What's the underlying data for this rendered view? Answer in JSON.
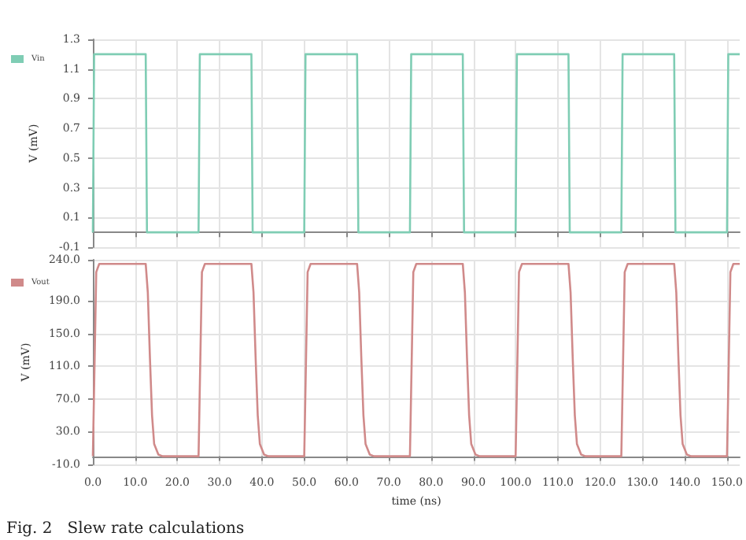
{
  "chart_data": [
    {
      "type": "line",
      "ylabel": "V (mV)",
      "legend": "top left",
      "grid": true,
      "tick_labels": "y",
      "marker": "none",
      "xlim": [
        0,
        153
      ],
      "xticks": [
        {
          "value": 0,
          "label": null
        },
        {
          "value": 10,
          "label": null
        },
        {
          "value": 20,
          "label": null
        },
        {
          "value": 30,
          "label": null
        },
        {
          "value": 40,
          "label": null
        },
        {
          "value": 50,
          "label": null
        },
        {
          "value": 60,
          "label": null
        },
        {
          "value": 70,
          "label": null
        },
        {
          "value": 80,
          "label": null
        },
        {
          "value": 90,
          "label": null
        },
        {
          "value": 100,
          "label": null
        },
        {
          "value": 110,
          "label": null
        },
        {
          "value": 120,
          "label": null
        },
        {
          "value": 130,
          "label": null
        },
        {
          "value": 140,
          "label": null
        },
        {
          "value": 150,
          "label": null
        }
      ],
      "ylim": [
        -0.1,
        1.3
      ],
      "yticks": [
        -0.1,
        0.1,
        0.3,
        0.5,
        0.7,
        0.9,
        1.1,
        1.3
      ],
      "series": [
        {
          "name": "Vin",
          "color": "#7fcdb4",
          "x": [
            0,
            0.3,
            12.5,
            12.8,
            25,
            25.3,
            37.5,
            37.8,
            50,
            50.3,
            62.5,
            62.8,
            75,
            75.3,
            87.5,
            87.8,
            100,
            100.3,
            112.5,
            112.8,
            125,
            125.3,
            137.5,
            137.8,
            150,
            150.3,
            153
          ],
          "values": [
            0,
            1.2,
            1.2,
            0,
            0,
            1.2,
            1.2,
            0,
            0,
            1.2,
            1.2,
            0,
            0,
            1.2,
            1.2,
            0,
            0,
            1.2,
            1.2,
            0,
            0,
            1.2,
            1.2,
            0,
            0,
            1.2,
            1.2
          ]
        }
      ]
    },
    {
      "type": "line",
      "xlabel": "time (ns)",
      "ylabel": "V (mV)",
      "legend": "top left",
      "grid": true,
      "marker": "none",
      "annotations": [
        "Fig. 2   Slew rate calculations"
      ],
      "xlim": [
        0,
        153
      ],
      "xticks": [
        {
          "value": 0,
          "label": "0.0"
        },
        {
          "value": 10,
          "label": "10.0"
        },
        {
          "value": 20,
          "label": "20.0"
        },
        {
          "value": 30,
          "label": "30.0"
        },
        {
          "value": 40,
          "label": "40.0"
        },
        {
          "value": 50,
          "label": "50.0"
        },
        {
          "value": 60,
          "label": "60.0"
        },
        {
          "value": 70,
          "label": "70.0"
        },
        {
          "value": 80,
          "label": "80.0"
        },
        {
          "value": 90,
          "label": "90.0"
        },
        {
          "value": 100,
          "label": "100.0"
        },
        {
          "value": 110,
          "label": "110.0"
        },
        {
          "value": 120,
          "label": "120.0"
        },
        {
          "value": 130,
          "label": "130.0"
        },
        {
          "value": 140,
          "label": "140.0"
        },
        {
          "value": 150,
          "label": "150.0"
        }
      ],
      "ylim": [
        -10,
        240
      ],
      "yticks": [
        {
          "value": -10,
          "label": "-10.0"
        },
        {
          "value": 30,
          "label": "30.0"
        },
        {
          "value": 70,
          "label": "70.0"
        },
        {
          "value": 110,
          "label": "110.0"
        },
        {
          "value": 150,
          "label": "150.0"
        },
        {
          "value": 190,
          "label": "190.0"
        },
        {
          "value": 240,
          "label": "240.0"
        }
      ],
      "series": [
        {
          "name": "Vout",
          "color": "#d08a8a",
          "x": [
            0,
            0.8,
            1.5,
            12.5,
            13,
            13.5,
            14,
            14.5,
            15.5,
            16.5,
            25,
            25.8,
            26.5,
            37.5,
            38,
            38.5,
            39,
            39.5,
            40.5,
            41.5,
            50,
            50.8,
            51.5,
            62.5,
            63,
            63.5,
            64,
            64.5,
            65.5,
            66.5,
            75,
            75.8,
            76.5,
            87.5,
            88,
            88.5,
            89,
            89.5,
            90.5,
            91.5,
            100,
            100.8,
            101.5,
            112.5,
            113,
            113.5,
            114,
            114.5,
            115.5,
            116.5,
            125,
            125.8,
            126.5,
            137.5,
            138,
            138.5,
            139,
            139.5,
            140.5,
            141.5,
            150,
            150.8,
            151.5,
            153
          ],
          "values": [
            0,
            225,
            235,
            235,
            200,
            120,
            50,
            15,
            2,
            0,
            0,
            225,
            235,
            235,
            200,
            120,
            50,
            15,
            2,
            0,
            0,
            225,
            235,
            235,
            200,
            120,
            50,
            15,
            2,
            0,
            0,
            225,
            235,
            235,
            200,
            120,
            50,
            15,
            2,
            0,
            0,
            225,
            235,
            235,
            200,
            120,
            50,
            15,
            2,
            0,
            0,
            225,
            235,
            235,
            200,
            120,
            50,
            15,
            2,
            0,
            0,
            225,
            235,
            235
          ]
        }
      ]
    }
  ]
}
